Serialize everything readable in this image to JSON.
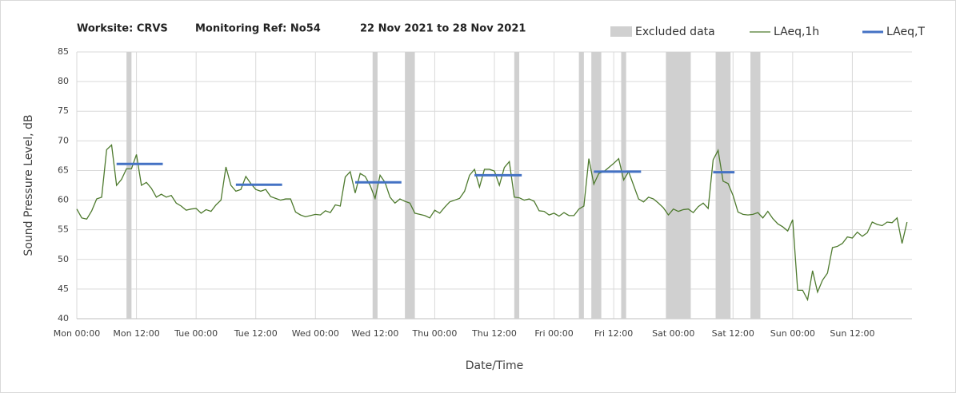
{
  "chart_data": {
    "type": "line",
    "title_parts": [
      "Worksite: CRVS",
      "Monitoring Ref: No54",
      "22 Nov 2021 to 28 Nov 2021"
    ],
    "xlabel": "Date/Time",
    "ylabel": "Sound Pressure Level, dB",
    "xlim": [
      0,
      168
    ],
    "xticks": [
      {
        "value": 0,
        "label": "Mon 00:00"
      },
      {
        "value": 12,
        "label": "Mon 12:00"
      },
      {
        "value": 24,
        "label": "Tue 00:00"
      },
      {
        "value": 36,
        "label": "Tue 12:00"
      },
      {
        "value": 48,
        "label": "Wed 00:00"
      },
      {
        "value": 60,
        "label": "Wed 12:00"
      },
      {
        "value": 72,
        "label": "Thu 00:00"
      },
      {
        "value": 84,
        "label": "Thu 12:00"
      },
      {
        "value": 96,
        "label": "Fri 00:00"
      },
      {
        "value": 108,
        "label": "Fri 12:00"
      },
      {
        "value": 120,
        "label": "Sat 00:00"
      },
      {
        "value": 132,
        "label": "Sat 12:00"
      },
      {
        "value": 144,
        "label": "Sun 00:00"
      },
      {
        "value": 156,
        "label": "Sun 12:00"
      }
    ],
    "ylim": [
      40,
      85
    ],
    "yticks": [
      40,
      45,
      50,
      55,
      60,
      65,
      70,
      75,
      80,
      85
    ],
    "grid": true,
    "excluded": {
      "name": "Excluded data",
      "color": "#d0d0d0",
      "ranges": [
        [
          10,
          11
        ],
        [
          59.5,
          60.5
        ],
        [
          66,
          68
        ],
        [
          88,
          89
        ],
        [
          101,
          102
        ],
        [
          103.5,
          105.5
        ],
        [
          109.5,
          110.5
        ],
        [
          118.5,
          123.5
        ],
        [
          128.5,
          131.5
        ],
        [
          135.5,
          137.5
        ]
      ]
    },
    "series": [
      {
        "name": "LAeq,1h",
        "color": "#4e7a2e",
        "x": [
          0,
          1,
          2,
          3,
          4,
          5,
          6,
          7,
          8,
          9,
          10,
          11,
          12,
          13,
          14,
          15,
          16,
          17,
          18,
          19,
          20,
          21,
          22,
          23,
          24,
          25,
          26,
          27,
          28,
          29,
          30,
          31,
          32,
          33,
          34,
          35,
          36,
          37,
          38,
          39,
          40,
          41,
          42,
          43,
          44,
          45,
          46,
          47,
          48,
          49,
          50,
          51,
          52,
          53,
          54,
          55,
          56,
          57,
          58,
          59,
          60,
          61,
          62,
          63,
          64,
          65,
          66,
          67,
          68,
          69,
          70,
          71,
          72,
          73,
          74,
          75,
          76,
          77,
          78,
          79,
          80,
          81,
          82,
          83,
          84,
          85,
          86,
          87,
          88,
          89,
          90,
          91,
          92,
          93,
          94,
          95,
          96,
          97,
          98,
          99,
          100,
          101,
          102,
          103,
          104,
          105,
          106,
          107,
          108,
          109,
          110,
          111,
          112,
          113,
          114,
          115,
          116,
          117,
          118,
          119,
          120,
          121,
          122,
          123,
          124,
          125,
          126,
          127,
          128,
          129,
          130,
          131,
          132,
          133,
          134,
          135,
          136,
          137,
          138,
          139,
          140,
          141,
          142,
          143,
          144,
          145,
          146,
          147,
          148,
          149,
          150,
          151,
          152,
          153,
          154,
          155,
          156,
          157,
          158,
          159,
          160,
          161,
          162,
          163,
          164,
          165,
          166,
          167
        ],
        "values": [
          58.5,
          57,
          56.8,
          58.2,
          60.2,
          60.5,
          68.5,
          69.3,
          62.5,
          63.5,
          65.3,
          65.3,
          67.7,
          62.5,
          63.0,
          62,
          60.5,
          61,
          60.5,
          60.8,
          59.5,
          59,
          58.3,
          58.5,
          58.6,
          57.8,
          58.4,
          58.1,
          59.2,
          60,
          65.6,
          62.5,
          61.5,
          61.8,
          64.0,
          62.8,
          61.8,
          61.5,
          61.8,
          60.6,
          60.3,
          60.0,
          60.2,
          60.2,
          58,
          57.5,
          57.2,
          57.4,
          57.6,
          57.5,
          58.2,
          57.9,
          59.2,
          59,
          63.9,
          64.8,
          61.2,
          64.5,
          64,
          62.5,
          60.3,
          64.2,
          63,
          60.5,
          59.5,
          60.2,
          59.8,
          59.5,
          57.8,
          57.6,
          57.4,
          57.0,
          58.3,
          57.8,
          58.8,
          59.7,
          60,
          60.3,
          61.5,
          64.2,
          65.2,
          62.2,
          65.2,
          65.2,
          64.9,
          62.5,
          65.5,
          66.5,
          60.5,
          60.4,
          60,
          60.2,
          59.8,
          58.2,
          58.1,
          57.5,
          57.8,
          57.3,
          57.9,
          57.4,
          57.4,
          58.5,
          59,
          67,
          62.7,
          64.5,
          64.8,
          65.5,
          66.2,
          67,
          63.4,
          64.8,
          62.5,
          60.2,
          59.7,
          60.5,
          60.2,
          59.5,
          58.7,
          57.5,
          58.5,
          58.1,
          58.4,
          58.5,
          57.9,
          58.9,
          59.5,
          58.6,
          66.8,
          68.4,
          63.2,
          62.8,
          60.8,
          58,
          57.6,
          57.5,
          57.6,
          57.9,
          57,
          58.1,
          56.9,
          56,
          55.5,
          54.8,
          56.7,
          44.8,
          44.8,
          43.2,
          48.1,
          44.5,
          46.5,
          47.7,
          52,
          52.2,
          52.7,
          53.8,
          53.6,
          54.6,
          53.9,
          54.5,
          56.3,
          55.9,
          55.7,
          56.3,
          56.2,
          57,
          52.7,
          56.3
        ]
      },
      {
        "name": "LAeq,T",
        "color": "#4472c4",
        "periods": [
          [
            8,
            17.3
          ],
          [
            32,
            41.3
          ],
          [
            56,
            65.3
          ],
          [
            80,
            89.5
          ],
          [
            104,
            113.5
          ],
          [
            128,
            132.3
          ]
        ],
        "values": [
          66.1,
          62.6,
          63.0,
          64.2,
          64.8,
          64.7
        ]
      }
    ]
  }
}
